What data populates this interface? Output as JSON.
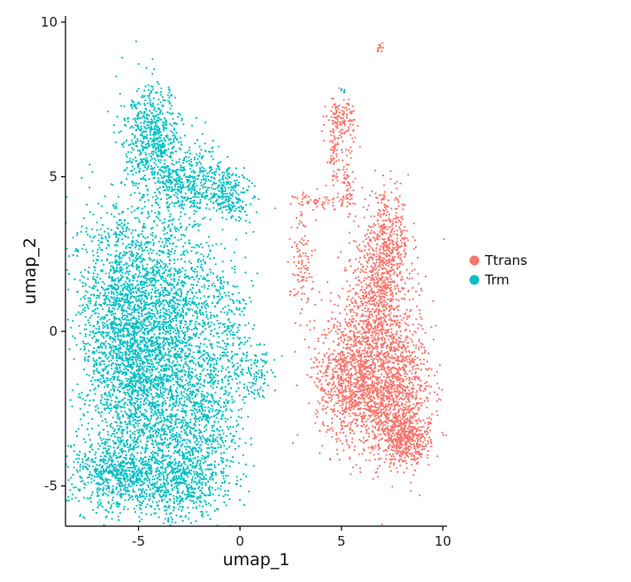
{
  "chart_data": {
    "type": "scatter",
    "xlabel": "umap_1",
    "ylabel": "umap_2",
    "xlim": [
      -8.6,
      10.2
    ],
    "ylim": [
      -6.3,
      10.2
    ],
    "x_ticks": [
      -5,
      0,
      5,
      10
    ],
    "y_ticks": [
      -5,
      0,
      5,
      10
    ],
    "x_tick_labels": [
      "-5",
      "0",
      "5",
      "10"
    ],
    "y_tick_labels": [
      "-5",
      "0",
      "5",
      "10"
    ],
    "grid": false,
    "legend_position": "right",
    "series": [
      {
        "name": "Ttrans",
        "color": "#F8766D",
        "clusters": [
          {
            "cx": 7.5,
            "cy": -2.0,
            "sx": 1.0,
            "sy": 1.1,
            "n": 1200
          },
          {
            "cx": 5.5,
            "cy": -1.5,
            "sx": 0.9,
            "sy": 1.0,
            "n": 900
          },
          {
            "cx": 6.8,
            "cy": 0.8,
            "sx": 0.9,
            "sy": 1.0,
            "n": 700
          },
          {
            "cx": 7.2,
            "cy": 2.8,
            "sx": 0.6,
            "sy": 0.8,
            "n": 450
          },
          {
            "cx": 5.0,
            "cy": 6.8,
            "sx": 0.35,
            "sy": 0.4,
            "n": 140
          },
          {
            "cx": 4.6,
            "cy": 5.7,
            "sx": 0.15,
            "sy": 0.4,
            "n": 50
          },
          {
            "cx": 5.3,
            "cy": 4.8,
            "sx": 0.15,
            "sy": 0.6,
            "n": 60
          },
          {
            "cx": 3.1,
            "cy": 2.0,
            "sx": 0.3,
            "sy": 1.0,
            "n": 110
          },
          {
            "cx": 3.9,
            "cy": 4.2,
            "sx": 0.6,
            "sy": 0.15,
            "n": 60
          },
          {
            "cx": 6.9,
            "cy": 9.2,
            "sx": 0.08,
            "sy": 0.08,
            "n": 12
          },
          {
            "cx": 8.2,
            "cy": -3.5,
            "sx": 0.6,
            "sy": 0.4,
            "n": 400
          }
        ]
      },
      {
        "name": "Trm",
        "color": "#00BFC4",
        "clusters": [
          {
            "cx": -5.8,
            "cy": 0.3,
            "sx": 1.1,
            "sy": 2.0,
            "n": 1800
          },
          {
            "cx": -4.0,
            "cy": -2.0,
            "sx": 1.3,
            "sy": 1.5,
            "n": 1400
          },
          {
            "cx": -3.2,
            "cy": 1.0,
            "sx": 1.2,
            "sy": 1.3,
            "n": 900
          },
          {
            "cx": -4.3,
            "cy": 6.3,
            "sx": 0.7,
            "sy": 0.8,
            "n": 600
          },
          {
            "cx": -2.5,
            "cy": 4.8,
            "sx": 1.0,
            "sy": 0.6,
            "n": 500
          },
          {
            "cx": -6.0,
            "cy": -4.6,
            "sx": 1.2,
            "sy": 0.6,
            "n": 650
          },
          {
            "cx": -3.0,
            "cy": -4.8,
            "sx": 1.3,
            "sy": 0.7,
            "n": 650
          },
          {
            "cx": -0.6,
            "cy": 4.4,
            "sx": 0.6,
            "sy": 0.4,
            "n": 200
          },
          {
            "cx": -1.5,
            "cy": -2.5,
            "sx": 0.8,
            "sy": 1.3,
            "n": 500
          },
          {
            "cx": -0.5,
            "cy": 0.5,
            "sx": 0.5,
            "sy": 1.0,
            "n": 150
          },
          {
            "cx": 0.7,
            "cy": -1.3,
            "sx": 0.6,
            "sy": 0.5,
            "n": 120
          },
          {
            "cx": 5.1,
            "cy": 7.8,
            "sx": 0.05,
            "sy": 0.05,
            "n": 5
          }
        ]
      }
    ]
  }
}
